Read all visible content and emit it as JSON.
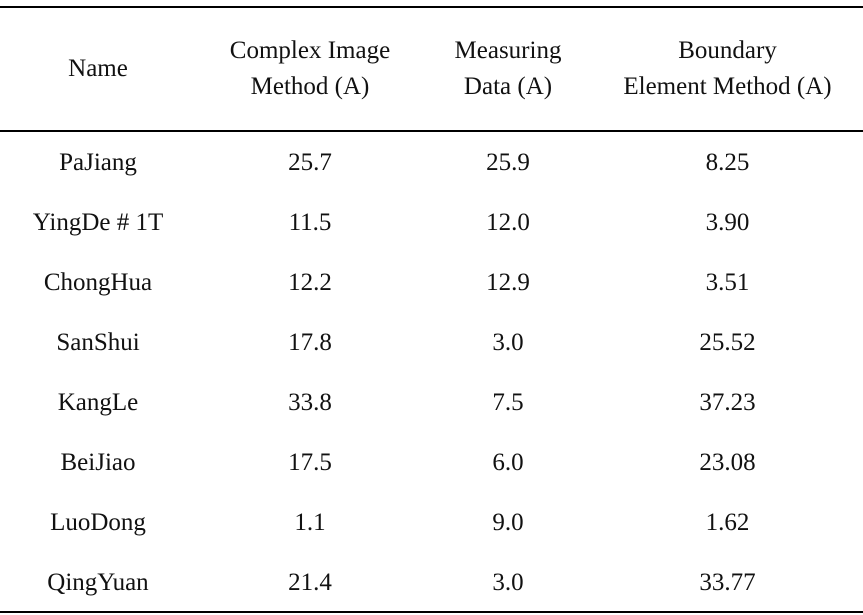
{
  "table": {
    "headers": [
      {
        "lines": [
          "Name"
        ]
      },
      {
        "lines": [
          "Complex Image",
          "Method (A)"
        ]
      },
      {
        "lines": [
          "Measuring",
          "Data (A)"
        ]
      },
      {
        "lines": [
          "Boundary",
          "Element Method (A)"
        ]
      }
    ],
    "rows": [
      [
        "PaJiang",
        "25.7",
        "25.9",
        "8.25"
      ],
      [
        "YingDe # 1T",
        "11.5",
        "12.0",
        "3.90"
      ],
      [
        "ChongHua",
        "12.2",
        "12.9",
        "3.51"
      ],
      [
        "SanShui",
        "17.8",
        "3.0",
        "25.52"
      ],
      [
        "KangLe",
        "33.8",
        "7.5",
        "37.23"
      ],
      [
        "BeiJiao",
        "17.5",
        "6.0",
        "23.08"
      ],
      [
        "LuoDong",
        "1.1",
        "9.0",
        "1.62"
      ],
      [
        "QingYuan",
        "21.4",
        "3.0",
        "33.77"
      ]
    ]
  }
}
